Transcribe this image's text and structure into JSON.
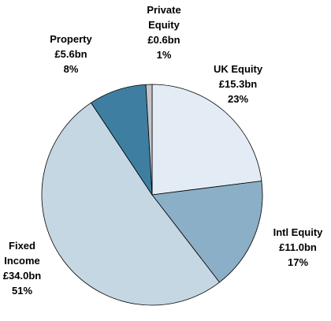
{
  "chart_data": {
    "type": "pie",
    "categories": [
      "UK Equity",
      "Intl Equity",
      "Fixed Income",
      "Property",
      "Private Equity"
    ],
    "values": [
      15.3,
      11.0,
      34.0,
      5.6,
      0.6
    ],
    "value_labels": [
      "£15.3bn",
      "£11.0bn",
      "£34.0bn",
      "£5.6bn",
      "£0.6bn"
    ],
    "percentages": [
      23,
      17,
      51,
      8,
      1
    ],
    "percentage_labels": [
      "23%",
      "17%",
      "51%",
      "8%",
      "1%"
    ],
    "colors": [
      "#e3ecf5",
      "#8aafc6",
      "#c4d7e3",
      "#3e7fa1",
      "#c2c6ca"
    ]
  }
}
